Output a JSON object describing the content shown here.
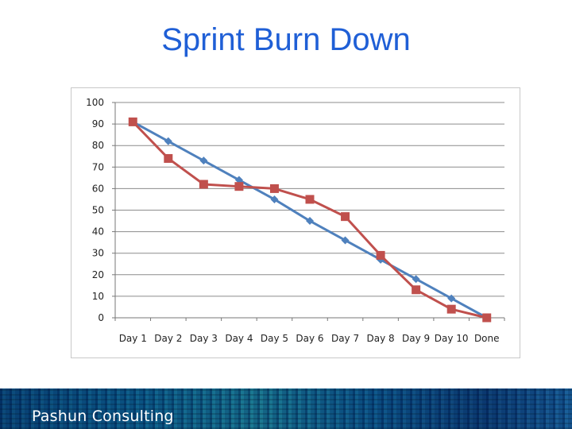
{
  "slide": {
    "title": "Sprint Burn Down"
  },
  "footer": {
    "brand": "Pashun Consulting"
  },
  "chart_data": {
    "type": "line",
    "categories": [
      "Day 1",
      "Day 2",
      "Day 3",
      "Day 4",
      "Day 5",
      "Day 6",
      "Day 7",
      "Day 8",
      "Day 9",
      "Day 10",
      "Done"
    ],
    "series": [
      {
        "color": "#4f81bd",
        "marker": "diamond",
        "values": [
          91,
          82,
          73,
          64,
          55,
          45,
          36,
          27,
          18,
          9,
          0
        ]
      },
      {
        "color": "#c0504d",
        "marker": "square",
        "values": [
          91,
          74,
          62,
          61,
          60,
          55,
          47,
          29,
          13,
          4,
          0
        ]
      }
    ],
    "ylim": [
      0,
      100
    ],
    "yticks": [
      "0",
      "10",
      "20",
      "30",
      "40",
      "50",
      "60",
      "70",
      "80",
      "90",
      "100"
    ],
    "grid": true,
    "legend": "none"
  }
}
